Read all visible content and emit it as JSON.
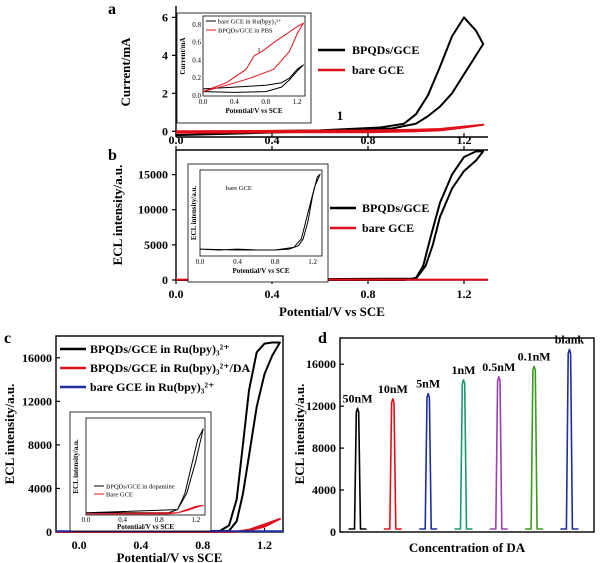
{
  "panel_labels": {
    "a": "a",
    "b": "b",
    "c": "c",
    "d": "d"
  },
  "colors": {
    "black": "#000000",
    "red": "#e0101a",
    "blue": "#1e2e9e",
    "green_teal": "#1a9a6a",
    "purple": "#9a40b0",
    "green": "#3a9a20"
  },
  "chart_data": [
    {
      "id": "a",
      "type": "line",
      "ylabel": "Current/mA",
      "xlim": [
        0,
        1.3
      ],
      "ylim": [
        -0.3,
        6.6
      ],
      "xticks": [
        "0.0",
        "0.4",
        "0.8",
        "1.2"
      ],
      "yticks": [
        "0",
        "2",
        "4",
        "6"
      ],
      "annotation": "1",
      "series": [
        {
          "name": "BPQDs/GCE",
          "color": "#000000",
          "x": [
            0.0,
            0.3,
            0.6,
            0.85,
            0.95,
            1.0,
            1.05,
            1.1,
            1.15,
            1.2,
            1.25,
            1.28,
            1.25,
            1.2,
            1.15,
            1.1,
            1.05,
            1.0,
            0.9,
            0.6,
            0.3,
            0.0
          ],
          "y": [
            -0.05,
            0.0,
            0.05,
            0.2,
            0.4,
            0.9,
            1.9,
            3.4,
            5.0,
            6.0,
            5.3,
            4.6,
            4.0,
            3.0,
            2.0,
            1.3,
            0.8,
            0.4,
            0.15,
            0.0,
            -0.1,
            -0.2
          ]
        },
        {
          "name": "bare GCE",
          "color": "#e0101a",
          "x": [
            0.0,
            0.4,
            0.8,
            1.0,
            1.1,
            1.2,
            1.28,
            1.2,
            1.1,
            1.0,
            0.8,
            0.4,
            0.0
          ],
          "y": [
            0.0,
            0.02,
            0.04,
            0.08,
            0.12,
            0.25,
            0.35,
            0.2,
            0.05,
            0.0,
            -0.05,
            -0.05,
            -0.08
          ]
        }
      ],
      "legend": [
        "BPQDs/GCE",
        "bare GCE"
      ],
      "inset": {
        "xlabel": "Potential/V vs SCE",
        "ylabel": "Current/mA",
        "xticks": [
          "0.0",
          "0.4",
          "0.8",
          "1.2"
        ],
        "yticks": [
          "0.0",
          "0.2",
          "0.4",
          "0.6",
          "0.8"
        ],
        "legend": [
          "bare GCE in Ru(bpy)₃²⁺",
          "BPQDs/GCE in PBS"
        ],
        "annotation": "1",
        "series": [
          {
            "name": "bare GCE in Ru(bpy)₃²⁺",
            "color": "#000000",
            "x": [
              0.0,
              0.4,
              0.8,
              1.0,
              1.1,
              1.2,
              1.28,
              1.2,
              1.1,
              1.0,
              0.8,
              0.4,
              0.0
            ],
            "y": [
              0.08,
              0.1,
              0.12,
              0.15,
              0.2,
              0.3,
              0.35,
              0.28,
              0.18,
              0.1,
              0.05,
              0.04,
              0.05
            ]
          },
          {
            "name": "BPQDs/GCE in PBS",
            "color": "#e0101a",
            "x": [
              0.0,
              0.3,
              0.55,
              0.65,
              0.75,
              0.9,
              1.0,
              1.1,
              1.2,
              1.28,
              1.2,
              1.1,
              0.9,
              0.6,
              0.3,
              0.0
            ],
            "y": [
              0.05,
              0.15,
              0.3,
              0.45,
              0.5,
              0.6,
              0.66,
              0.72,
              0.78,
              0.82,
              0.7,
              0.5,
              0.3,
              0.2,
              0.12,
              0.05
            ]
          }
        ]
      }
    },
    {
      "id": "b",
      "type": "line",
      "ylabel": "ECL intensity/a.u.",
      "xlabel": "Potential/V vs SCE",
      "xlim": [
        0,
        1.3
      ],
      "ylim": [
        0,
        18500
      ],
      "xticks": [
        "0.0",
        "0.4",
        "0.8",
        "1.2"
      ],
      "yticks": [
        "0",
        "5000",
        "10000",
        "15000"
      ],
      "series": [
        {
          "name": "BPQDs/GCE",
          "color": "#000000",
          "x": [
            0.0,
            0.95,
            1.0,
            1.03,
            1.06,
            1.1,
            1.15,
            1.2,
            1.25,
            1.28,
            1.25,
            1.2,
            1.15,
            1.1,
            1.07,
            1.04,
            1.0,
            0.0
          ],
          "y": [
            0,
            0,
            300,
            2000,
            6000,
            11000,
            15000,
            17500,
            18300,
            18300,
            17000,
            15500,
            13000,
            9000,
            5000,
            2000,
            200,
            0
          ]
        },
        {
          "name": "bare GCE",
          "color": "#e0101a",
          "x": [
            0.0,
            1.3
          ],
          "y": [
            60,
            60
          ]
        }
      ],
      "legend": [
        "BPQDs/GCE",
        "bare GCE"
      ],
      "inset": {
        "xlabel": "Potential/V vs SCE",
        "ylabel": "ECL intensity/a.u.",
        "title": "bare GCE",
        "xticks": [
          "0.0",
          "0.4",
          "0.8",
          "1.2"
        ],
        "series": [
          {
            "name": "bare GCE",
            "color": "#000000",
            "x": [
              0.0,
              0.2,
              0.4,
              0.6,
              0.8,
              0.95,
              1.05,
              1.1,
              1.15,
              1.2,
              1.25,
              1.28,
              1.22,
              1.15,
              1.08,
              1.0,
              0.8,
              0.4,
              0.0
            ],
            "y": [
              0.08,
              0.07,
              0.08,
              0.07,
              0.07,
              0.08,
              0.12,
              0.2,
              0.4,
              0.7,
              0.92,
              0.95,
              0.8,
              0.5,
              0.2,
              0.1,
              0.07,
              0.07,
              0.08
            ]
          }
        ]
      }
    },
    {
      "id": "c",
      "type": "line",
      "ylabel": "ECL intensity/a.u.",
      "xlabel": "Potential/V vs SCE",
      "xlim": [
        -0.15,
        1.32
      ],
      "ylim": [
        0,
        18000
      ],
      "xticks": [
        "0.0",
        "0.4",
        "0.8",
        "1.2"
      ],
      "yticks": [
        "0",
        "4000",
        "8000",
        "12000",
        "16000"
      ],
      "series": [
        {
          "name": "BPQDs/GCE in Ru(bpy)₃²⁺",
          "color": "#000000",
          "x": [
            -0.15,
            0.9,
            0.97,
            1.02,
            1.06,
            1.1,
            1.15,
            1.2,
            1.25,
            1.3,
            1.25,
            1.2,
            1.15,
            1.1,
            1.06,
            1.02,
            0.97,
            -0.15
          ],
          "y": [
            0,
            0,
            600,
            3000,
            8000,
            13000,
            16500,
            17300,
            17400,
            17400,
            16200,
            14500,
            11500,
            7000,
            3500,
            1000,
            100,
            0
          ]
        },
        {
          "name": "BPQDs/GCE in Ru(bpy)₃²⁺/DA",
          "color": "#e0101a",
          "x": [
            -0.15,
            1.0,
            1.1,
            1.2,
            1.3,
            1.2,
            1.1,
            1.0,
            -0.15
          ],
          "y": [
            0,
            0,
            150,
            500,
            1200,
            700,
            200,
            0,
            0
          ]
        },
        {
          "name": "bare GCE in Ru(bpy)₃²⁺",
          "color": "#1e2e9e",
          "x": [
            -0.15,
            1.32
          ],
          "y": [
            60,
            60
          ]
        }
      ],
      "legend": [
        "BPQDs/GCE in Ru(bpy)₃²⁺",
        "BPQDs/GCE in Ru(bpy)₃²⁺/DA",
        "bare GCE in Ru(bpy)₃²⁺"
      ],
      "inset": {
        "xlabel": "Potential/V vs SCE",
        "ylabel": "ECL intensity/a.u.",
        "xticks": [
          "0.0",
          "0.4",
          "0.8",
          "1.2"
        ],
        "legend": [
          "BPQDs/GCE in dopamine",
          "Bare GCE"
        ],
        "series": [
          {
            "name": "BPQDs/GCE in dopamine",
            "color": "#000000",
            "x": [
              0.0,
              0.9,
              1.0,
              1.1,
              1.2,
              1.28,
              1.22,
              1.15,
              1.08,
              1.0,
              0.0
            ],
            "y": [
              0.02,
              0.02,
              0.05,
              0.2,
              0.5,
              0.8,
              0.7,
              0.45,
              0.2,
              0.05,
              0.02
            ]
          },
          {
            "name": "Bare GCE",
            "color": "#e0101a",
            "x": [
              0.0,
              0.9,
              1.0,
              1.1,
              1.2,
              1.28,
              1.2,
              1.1,
              1.0,
              0.0
            ],
            "y": [
              0.01,
              0.01,
              0.02,
              0.05,
              0.08,
              0.09,
              0.07,
              0.04,
              0.02,
              0.01
            ]
          }
        ]
      }
    },
    {
      "id": "d",
      "type": "line",
      "ylabel": "ECL intensity/a.u.",
      "xlabel": "Concentration of DA",
      "ylim": [
        0,
        18500
      ],
      "yticks": [
        "0",
        "4000",
        "8000",
        "12000",
        "16000"
      ],
      "series": [
        {
          "name": "50nM",
          "color": "#000000",
          "value": 11800
        },
        {
          "name": "10nM",
          "color": "#e0101a",
          "value": 12700
        },
        {
          "name": "5nM",
          "color": "#1e2e9e",
          "value": 13200
        },
        {
          "name": "1nM",
          "color": "#1a9a6a",
          "value": 14500
        },
        {
          "name": "0.5nM",
          "color": "#9a40b0",
          "value": 14800
        },
        {
          "name": "0.1nM",
          "color": "#3a9a20",
          "value": 15800
        },
        {
          "name": "blank",
          "color": "#1e2e9e",
          "value": 17400
        }
      ]
    }
  ]
}
